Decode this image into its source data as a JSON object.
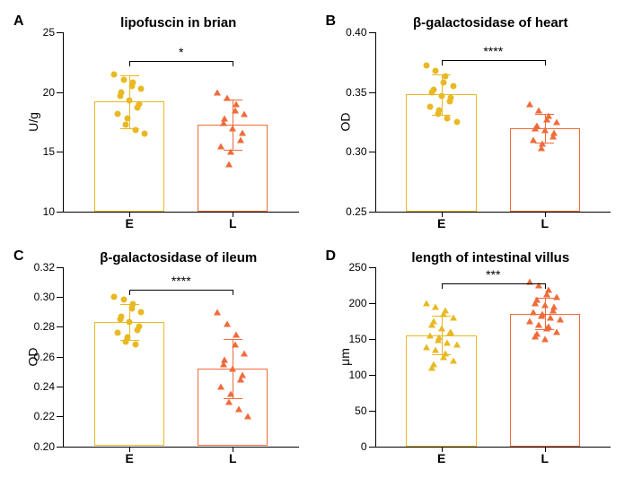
{
  "colors": {
    "E": "#e8b923",
    "L": "#ef6b3a",
    "axis": "#000000"
  },
  "panels": [
    {
      "letter": "A",
      "title": "lipofuscin in brian",
      "ylabel": "U/g",
      "ylim": [
        10,
        25
      ],
      "yticks": [
        10,
        15,
        20,
        25
      ],
      "ytick_labels": [
        "10",
        "15",
        "20",
        "25"
      ],
      "marker_E": "circle",
      "marker_L": "triangle",
      "sig": "*",
      "groups": [
        {
          "label": "E",
          "mean": 19.2,
          "sd": 2.2,
          "points": [
            21.5,
            21.0,
            20.8,
            20.5,
            20.3,
            20.0,
            19.7,
            19.3,
            19.0,
            18.7,
            18.2,
            17.8,
            17.3,
            16.8,
            16.5
          ]
        },
        {
          "label": "L",
          "mean": 17.3,
          "sd": 2.1,
          "points": [
            20.0,
            19.5,
            19.0,
            18.5,
            18.2,
            17.8,
            17.4,
            17.0,
            16.6,
            16.0,
            15.5,
            15.0,
            14.0
          ]
        }
      ]
    },
    {
      "letter": "B",
      "title": "β-galactosidase of heart",
      "ylabel": "OD",
      "ylim": [
        0.25,
        0.4
      ],
      "yticks": [
        0.25,
        0.3,
        0.35,
        0.4
      ],
      "ytick_labels": [
        "0.25",
        "0.30",
        "0.35",
        "0.40"
      ],
      "marker_E": "circle",
      "marker_L": "triangle",
      "sig": "****",
      "groups": [
        {
          "label": "E",
          "mean": 0.348,
          "sd": 0.017,
          "points": [
            0.372,
            0.368,
            0.363,
            0.358,
            0.355,
            0.352,
            0.35,
            0.347,
            0.345,
            0.342,
            0.338,
            0.335,
            0.332,
            0.328,
            0.325
          ]
        },
        {
          "label": "L",
          "mean": 0.32,
          "sd": 0.012,
          "points": [
            0.34,
            0.335,
            0.33,
            0.327,
            0.325,
            0.322,
            0.32,
            0.318,
            0.316,
            0.313,
            0.31,
            0.307,
            0.303
          ]
        }
      ]
    },
    {
      "letter": "C",
      "title": "β-galactosidase of ileum",
      "ylabel": "OD",
      "ylim": [
        0.2,
        0.32
      ],
      "yticks": [
        0.2,
        0.22,
        0.24,
        0.26,
        0.28,
        0.3,
        0.32
      ],
      "ytick_labels": [
        "0.20",
        "0.22",
        "0.24",
        "0.26",
        "0.28",
        "0.30",
        "0.32"
      ],
      "marker_E": "circle",
      "marker_L": "triangle",
      "sig": "****",
      "groups": [
        {
          "label": "E",
          "mean": 0.283,
          "sd": 0.012,
          "points": [
            0.3,
            0.298,
            0.295,
            0.292,
            0.29,
            0.287,
            0.285,
            0.283,
            0.28,
            0.278,
            0.276,
            0.273,
            0.27,
            0.268
          ]
        },
        {
          "label": "L",
          "mean": 0.252,
          "sd": 0.02,
          "points": [
            0.29,
            0.282,
            0.275,
            0.268,
            0.262,
            0.258,
            0.255,
            0.252,
            0.248,
            0.245,
            0.24,
            0.235,
            0.23,
            0.225,
            0.22
          ]
        }
      ]
    },
    {
      "letter": "D",
      "title": "length of intestinal villus",
      "ylabel": "μm",
      "ylim": [
        0,
        250
      ],
      "yticks": [
        0,
        50,
        100,
        150,
        200,
        250
      ],
      "ytick_labels": [
        "0",
        "50",
        "100",
        "150",
        "200",
        "250"
      ],
      "marker_E": "triangle",
      "marker_L": "triangle",
      "sig": "***",
      "groups": [
        {
          "label": "E",
          "mean": 155,
          "sd": 27,
          "points": [
            200,
            195,
            190,
            185,
            180,
            175,
            170,
            165,
            160,
            158,
            155,
            152,
            148,
            145,
            142,
            138,
            135,
            130,
            125,
            120,
            115,
            110
          ]
        },
        {
          "label": "L",
          "mean": 185,
          "sd": 22,
          "points": [
            230,
            225,
            218,
            212,
            208,
            205,
            200,
            197,
            194,
            190,
            187,
            185,
            182,
            180,
            177,
            174,
            170,
            167,
            164,
            160,
            157,
            153,
            150
          ]
        }
      ]
    }
  ]
}
